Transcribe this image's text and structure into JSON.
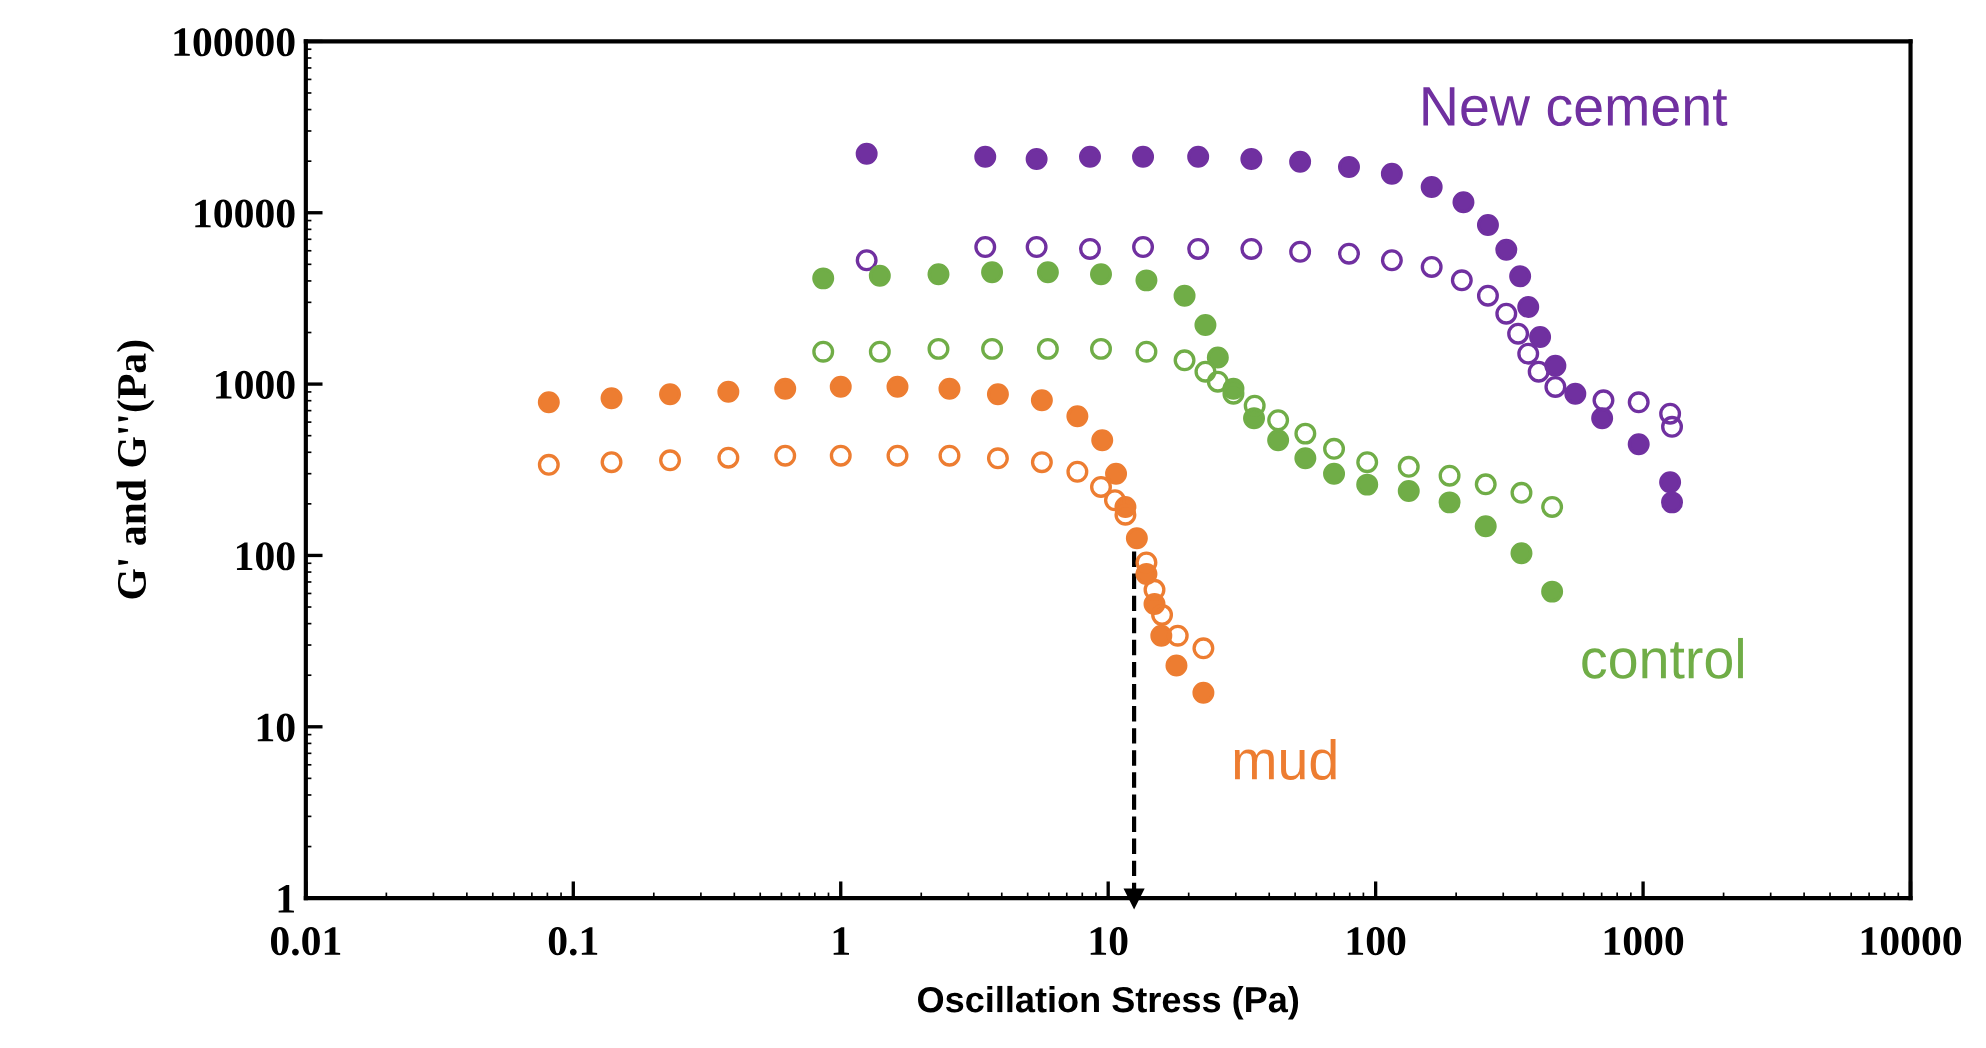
{
  "chart_data": {
    "type": "scatter",
    "xlabel": "Oscillation Stress (Pa)",
    "ylabel": "G' and G''(Pa)",
    "log": "xy",
    "marker": "circle",
    "grid": false,
    "legend": false,
    "xlim": [
      0.01,
      10000
    ],
    "xticks": [
      0.01,
      0.1,
      1,
      10,
      100,
      1000,
      10000
    ],
    "ylim": [
      1,
      100000
    ],
    "yticks": [
      1,
      10,
      100,
      1000,
      10000,
      100000
    ],
    "series": [
      {
        "name": "New cement",
        "color": "#7030a0",
        "x": [
          1.25,
          3.47,
          5.4,
          8.55,
          13.5,
          21.7,
          34.3,
          52.2,
          79.5,
          115,
          162,
          213,
          263,
          308,
          347,
          372,
          412,
          470,
          558,
          703,
          963,
          1262,
          1283
        ],
        "values": [
          22100,
          21200,
          20600,
          21200,
          21200,
          21200,
          20600,
          19860,
          18500,
          16900,
          14150,
          11500,
          8490,
          6080,
          4255,
          2820,
          1885,
          1280,
          879,
          631,
          445,
          267,
          204
        ]
      },
      {
        "color": "#7030a0",
        "x": [
          1.25,
          3.47,
          5.4,
          8.55,
          13.5,
          21.7,
          34.3,
          52.2,
          79.5,
          115,
          162,
          210,
          263,
          308,
          341,
          372,
          407,
          470,
          711,
          963,
          1262,
          1283
        ],
        "values": [
          5280,
          6310,
          6310,
          6150,
          6310,
          6150,
          6150,
          5920,
          5770,
          5280,
          4830,
          4035,
          3280,
          2575,
          1968,
          1505,
          1181,
          963,
          804,
          783,
          672,
          563
        ]
      },
      {
        "name": "control",
        "color": "#70ad47",
        "x": [
          0.86,
          1.4,
          2.32,
          3.68,
          5.95,
          9.4,
          13.9,
          19.3,
          23.1,
          25.7,
          29.4,
          35.1,
          43.2,
          54.6,
          69.9,
          93,
          133,
          189,
          258,
          351,
          457
        ],
        "values": [
          4140,
          4290,
          4370,
          4490,
          4490,
          4370,
          4030,
          3280,
          2210,
          1430,
          938,
          631,
          470,
          369,
          300,
          259,
          238,
          204,
          148,
          103,
          61.5
        ]
      },
      {
        "color": "#70ad47",
        "x": [
          0.86,
          1.4,
          2.32,
          3.68,
          5.95,
          9.4,
          13.9,
          19.3,
          23.1,
          25.7,
          29.4,
          35.3,
          43.2,
          54.6,
          69.9,
          93,
          133,
          189,
          258,
          351,
          457
        ],
        "values": [
          1545,
          1545,
          1605,
          1605,
          1605,
          1605,
          1545,
          1377,
          1181,
          1033,
          879,
          748,
          615,
          514,
          419,
          350,
          329,
          292,
          260,
          232,
          192
        ]
      },
      {
        "name": "mud",
        "color": "#ed7d31",
        "x": [
          0.081,
          0.139,
          0.23,
          0.38,
          0.62,
          1.0,
          1.63,
          2.55,
          3.87,
          5.65,
          7.67,
          9.5,
          10.7,
          11.6,
          12.8,
          13.9,
          14.9,
          15.8,
          18.0,
          22.7
        ],
        "values": [
          783,
          826,
          872,
          903,
          938,
          964,
          964,
          938,
          872,
          804,
          649,
          470,
          300,
          192,
          126,
          78,
          52,
          34,
          22.8,
          15.8
        ]
      },
      {
        "color": "#ed7d31",
        "x": [
          0.081,
          0.139,
          0.23,
          0.38,
          0.62,
          1.0,
          1.63,
          2.55,
          3.87,
          5.65,
          7.67,
          9.4,
          10.6,
          11.6,
          13.9,
          14.9,
          15.9,
          18.2,
          22.7
        ],
        "values": [
          338,
          350,
          359,
          372,
          382,
          382,
          382,
          382,
          369,
          350,
          308,
          251,
          210,
          173,
          91,
          63,
          45,
          34,
          28.7
        ]
      }
    ],
    "ref_lines": [
      {
        "axis": "x",
        "value": 12.5,
        "color": "#000000",
        "line_style": "dashed"
      }
    ]
  }
}
